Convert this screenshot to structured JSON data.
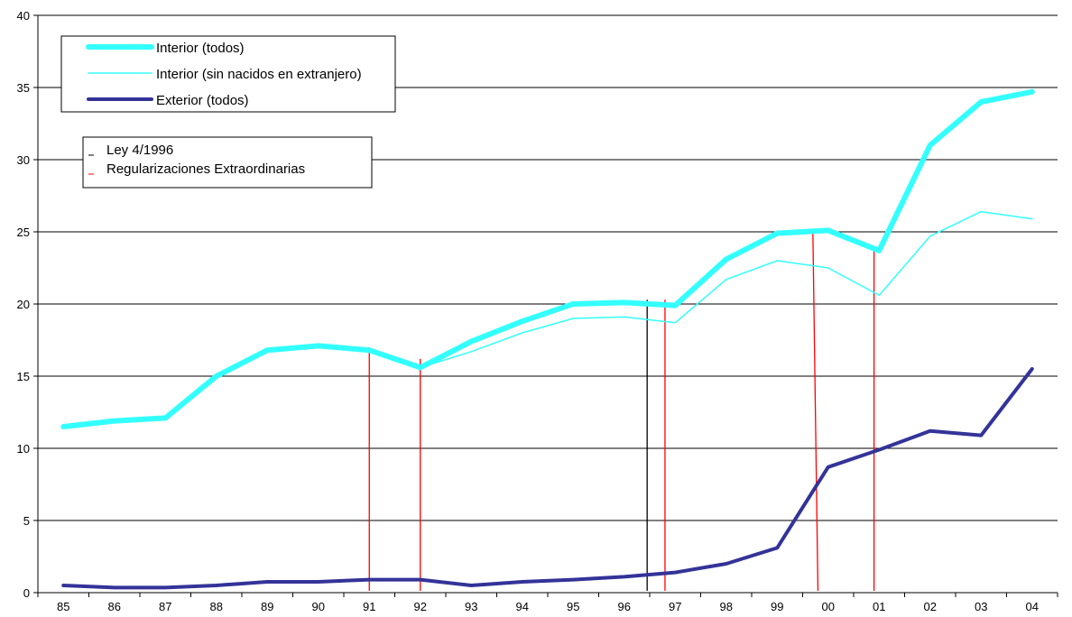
{
  "chart_data": {
    "type": "line",
    "categories": [
      "85",
      "86",
      "87",
      "88",
      "89",
      "90",
      "91",
      "92",
      "93",
      "94",
      "95",
      "96",
      "97",
      "98",
      "99",
      "00",
      "01",
      "02",
      "03",
      "04"
    ],
    "ylim": [
      0,
      40
    ],
    "yticks": [
      "0",
      "5",
      "10",
      "15",
      "20",
      "25",
      "30",
      "35",
      "40"
    ],
    "grid": "horizontal",
    "series": [
      {
        "name": "Interior (todos)",
        "color": "#33FFFF",
        "width": 6,
        "values": [
          11.5,
          11.9,
          12.1,
          15.0,
          16.8,
          17.1,
          16.8,
          15.6,
          17.4,
          18.8,
          20.0,
          20.1,
          19.9,
          23.1,
          24.9,
          25.1,
          23.7,
          31.0,
          34.0,
          34.7
        ]
      },
      {
        "name": "Interior (sin nacidos en extranjero)",
        "color": "#33FFFF",
        "width": 1.5,
        "values": [
          11.5,
          11.9,
          12.1,
          15.0,
          16.8,
          17.1,
          16.8,
          15.6,
          16.7,
          18.0,
          19.0,
          19.1,
          18.7,
          21.7,
          23.0,
          22.5,
          20.6,
          24.7,
          26.4,
          25.9
        ]
      },
      {
        "name": "Exterior (todos)",
        "color": "#333399",
        "width": 4,
        "values": [
          0.5,
          0.35,
          0.35,
          0.5,
          0.75,
          0.75,
          0.9,
          0.9,
          0.5,
          0.75,
          0.9,
          1.1,
          1.4,
          2.0,
          3.1,
          8.7,
          9.9,
          11.2,
          10.9,
          15.5
        ]
      }
    ],
    "event_lines": [
      {
        "name": "Ley 4/1996",
        "color": "#000000",
        "x_start": 11.45,
        "x_end": 11.45,
        "y_top": 20.3
      },
      {
        "name": "Regularizaciones Extraordinarias",
        "color": "#FF0000",
        "x_start": 6.0,
        "x_end": 6.0,
        "y_top": 17.0
      },
      {
        "name": "Regularizaciones Extraordinarias",
        "color": "#FF0000",
        "x_start": 7.0,
        "x_end": 7.0,
        "y_top": 16.2
      },
      {
        "name": "Regularizaciones Extraordinarias",
        "color": "#FF0000",
        "x_start": 11.8,
        "x_end": 11.8,
        "y_top": 20.3
      },
      {
        "name": "Regularizaciones Extraordinarias",
        "color": "#FF0000",
        "x_start": 14.7,
        "x_end": 14.8,
        "y_top": 25.1
      },
      {
        "name": "Regularizaciones Extraordinarias",
        "color": "#FF0000",
        "x_start": 15.9,
        "x_end": 15.9,
        "y_top": 24.0
      }
    ],
    "legend_series": [
      "Interior (todos)",
      "Interior (sin nacidos en extranjero)",
      "Exterior (todos)"
    ],
    "legend_events": [
      {
        "label": "Ley 4/1996",
        "color": "#000000"
      },
      {
        "label": "Regularizaciones Extraordinarias",
        "color": "#FF0000"
      }
    ],
    "legend_placement": "top-left"
  }
}
